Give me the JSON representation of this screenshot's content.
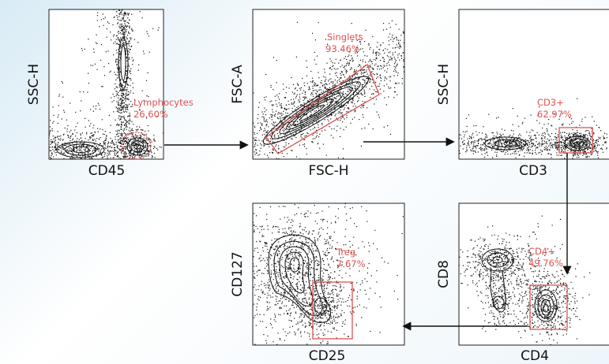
{
  "accent_color": "#e05050",
  "panels": [
    {
      "id": "p1",
      "xlabel": "CD45",
      "ylabel": "SSC-H",
      "gate_name": "Lymphocytes",
      "gate_pct": "26.60%"
    },
    {
      "id": "p2",
      "xlabel": "FSC-H",
      "ylabel": "FSC-A",
      "gate_name": "Singlets",
      "gate_pct": "93.46%"
    },
    {
      "id": "p3",
      "xlabel": "CD3",
      "ylabel": "SSC-H",
      "gate_name": "CD3+",
      "gate_pct": "62.97%"
    },
    {
      "id": "p4",
      "xlabel": "CD4",
      "ylabel": "CD8",
      "gate_name": "CD4+",
      "gate_pct": "49.76%"
    },
    {
      "id": "p5",
      "xlabel": "CD25",
      "ylabel": "CD127",
      "gate_name": "Treg",
      "gate_pct": "7.67%"
    }
  ]
}
